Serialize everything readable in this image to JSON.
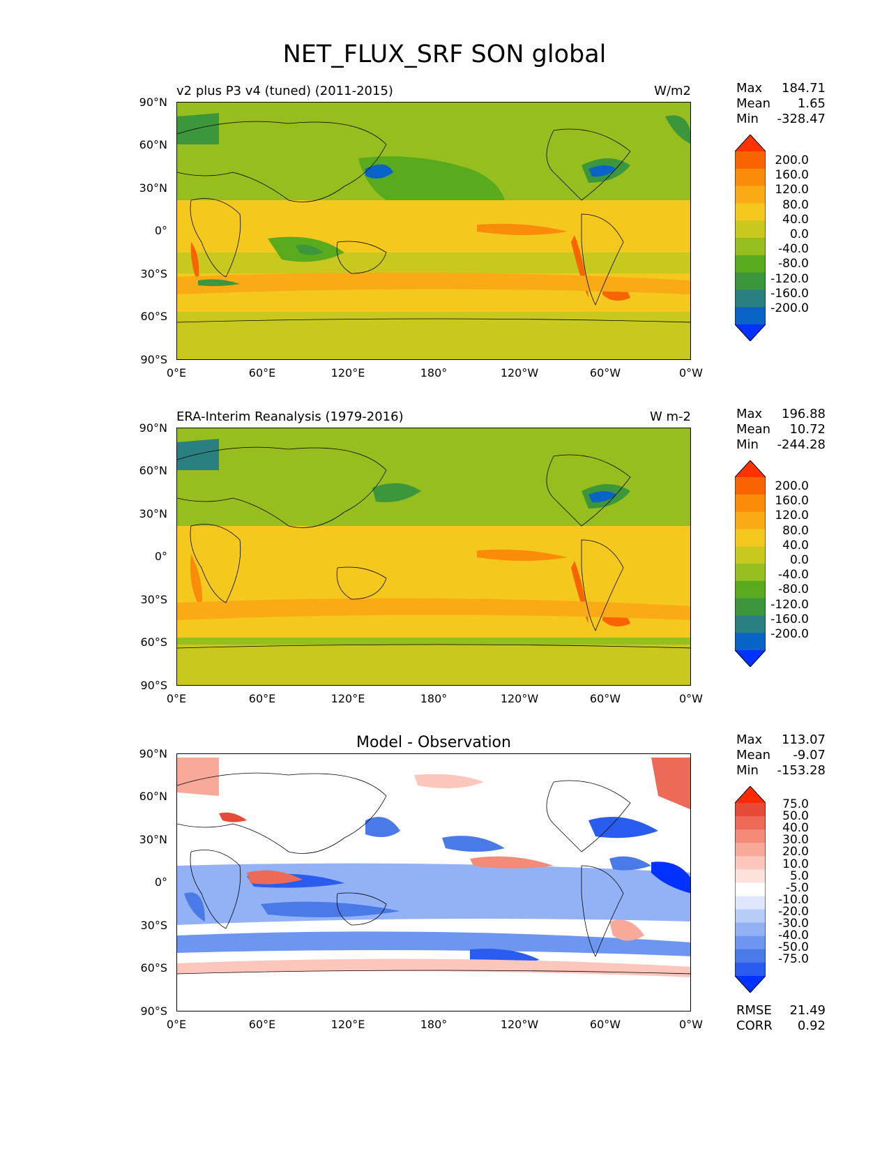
{
  "figure": {
    "title": "NET_FLUX_SRF SON global"
  },
  "axes": {
    "lat_labels": [
      "90°N",
      "60°N",
      "30°N",
      "0°",
      "30°S",
      "60°S",
      "90°S"
    ],
    "lon_labels": [
      "0°E",
      "60°E",
      "120°E",
      "180°",
      "120°W",
      "60°W",
      "0°W"
    ]
  },
  "panels": [
    {
      "title": "v2 plus P3 v4 (tuned) (2011-2015)",
      "units": "W/m2",
      "stats": {
        "max_label": "Max",
        "max": "184.71",
        "mean_label": "Mean",
        "mean": "1.65",
        "min_label": "Min",
        "min": "-328.47"
      },
      "colorbar_labels": [
        "200.0",
        "160.0",
        "120.0",
        "80.0",
        "40.0",
        "0.0",
        "-40.0",
        "-80.0",
        "-120.0",
        "-160.0",
        "-200.0"
      ]
    },
    {
      "title": "ERA-Interim Reanalysis (1979-2016)",
      "units": "W m-2",
      "stats": {
        "max_label": "Max",
        "max": "196.88",
        "mean_label": "Mean",
        "mean": "10.72",
        "min_label": "Min",
        "min": "-244.28"
      },
      "colorbar_labels": [
        "200.0",
        "160.0",
        "120.0",
        "80.0",
        "40.0",
        "0.0",
        "-40.0",
        "-80.0",
        "-120.0",
        "-160.0",
        "-200.0"
      ]
    },
    {
      "title": "Model - Observation",
      "stats": {
        "max_label": "Max",
        "max": "113.07",
        "mean_label": "Mean",
        "mean": "-9.07",
        "min_label": "Min",
        "min": "-153.28"
      },
      "colorbar_labels": [
        "75.0",
        "50.0",
        "40.0",
        "30.0",
        "20.0",
        "10.0",
        "5.0",
        "-5.0",
        "-10.0",
        "-20.0",
        "-30.0",
        "-40.0",
        "-50.0",
        "-75.0"
      ],
      "extra_stats": {
        "rmse_label": "RMSE",
        "rmse": "21.49",
        "corr_label": "CORR",
        "corr": "0.92"
      }
    }
  ],
  "colors": {
    "abs_scale": [
      "#0032ff",
      "#0a64c8",
      "#2a8080",
      "#3c963c",
      "#5aaa1e",
      "#96be1e",
      "#c8c81e",
      "#f5c81e",
      "#faaa14",
      "#fa8c0a",
      "#fa6400",
      "#ff3200"
    ],
    "diff_scale": [
      "#0032ff",
      "#2a5cf0",
      "#4a7ae8",
      "#6c96f0",
      "#92b2f5",
      "#b8ccf8",
      "#dde6fc",
      "#ffffff",
      "#fde2dc",
      "#fbc6bc",
      "#f8a99a",
      "#f48a78",
      "#ee6a58",
      "#e84a38",
      "#ff2a00"
    ]
  }
}
